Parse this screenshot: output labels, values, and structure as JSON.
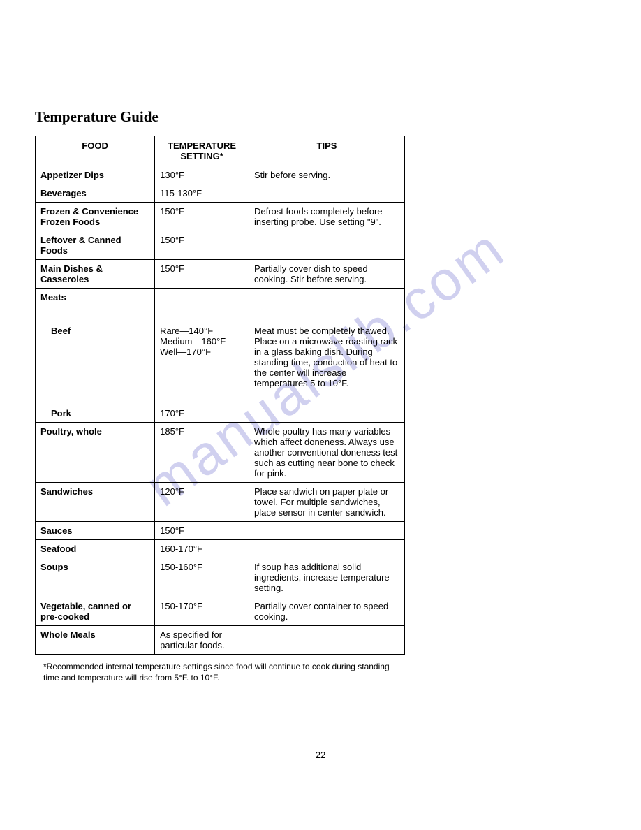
{
  "title": "Temperature Guide",
  "watermark": "manualslib.com",
  "page_number": "22",
  "table": {
    "headers": {
      "food": "FOOD",
      "temp": "TEMPERATURE SETTING*",
      "tips": "TIPS"
    },
    "rows": {
      "appetizer": {
        "food": "Appetizer Dips",
        "temp": "130°F",
        "tips": "Stir before serving."
      },
      "beverages": {
        "food": "Beverages",
        "temp": "115-130°F",
        "tips": ""
      },
      "frozen": {
        "food": "Frozen & Convenience Frozen Foods",
        "temp": "150°F",
        "tips": "Defrost foods completely before inserting probe. Use setting \"9\"."
      },
      "leftover": {
        "food": "Leftover & Canned Foods",
        "temp": "150°F",
        "tips": ""
      },
      "main": {
        "food": "Main Dishes & Casseroles",
        "temp": "150°F",
        "tips": "Partially cover dish to speed cooking. Stir before serving."
      },
      "meats": {
        "food": "Meats",
        "temp": "",
        "tips": ""
      },
      "beef": {
        "food": "Beef",
        "temp": "Rare—140°F\nMedium—160°F\nWell—170°F",
        "tips": "Meat must be completely thawed. Place on a microwave roasting rack in a glass baking dish. During standing time, conduction of heat to the center will increase temperatures 5 to 10°F."
      },
      "pork": {
        "food": "Pork",
        "temp": "170°F",
        "tips": ""
      },
      "poultry": {
        "food": "Poultry, whole",
        "temp": "185°F",
        "tips": "Whole poultry has many variables which affect doneness. Always use another conventional doneness test such as cutting near bone to check for pink."
      },
      "sandwiches": {
        "food": "Sandwiches",
        "temp": "120°F",
        "tips": "Place sandwich on paper plate or towel. For multiple sandwiches, place sensor in center sandwich."
      },
      "sauces": {
        "food": "Sauces",
        "temp": "150°F",
        "tips": ""
      },
      "seafood": {
        "food": "Seafood",
        "temp": "160-170°F",
        "tips": ""
      },
      "soups": {
        "food": "Soups",
        "temp": "150-160°F",
        "tips": "If soup has additional solid ingredients, increase temperature setting."
      },
      "vegetable": {
        "food": "Vegetable, canned or pre-cooked",
        "temp": "150-170°F",
        "tips": "Partially cover container to speed cooking."
      },
      "wholemeals": {
        "food": "Whole Meals",
        "temp": "As specified for particular foods.",
        "tips": ""
      }
    }
  },
  "footnote": "*Recommended internal temperature settings since food will continue to cook during standing time and temperature will rise from 5°F. to 10°F."
}
